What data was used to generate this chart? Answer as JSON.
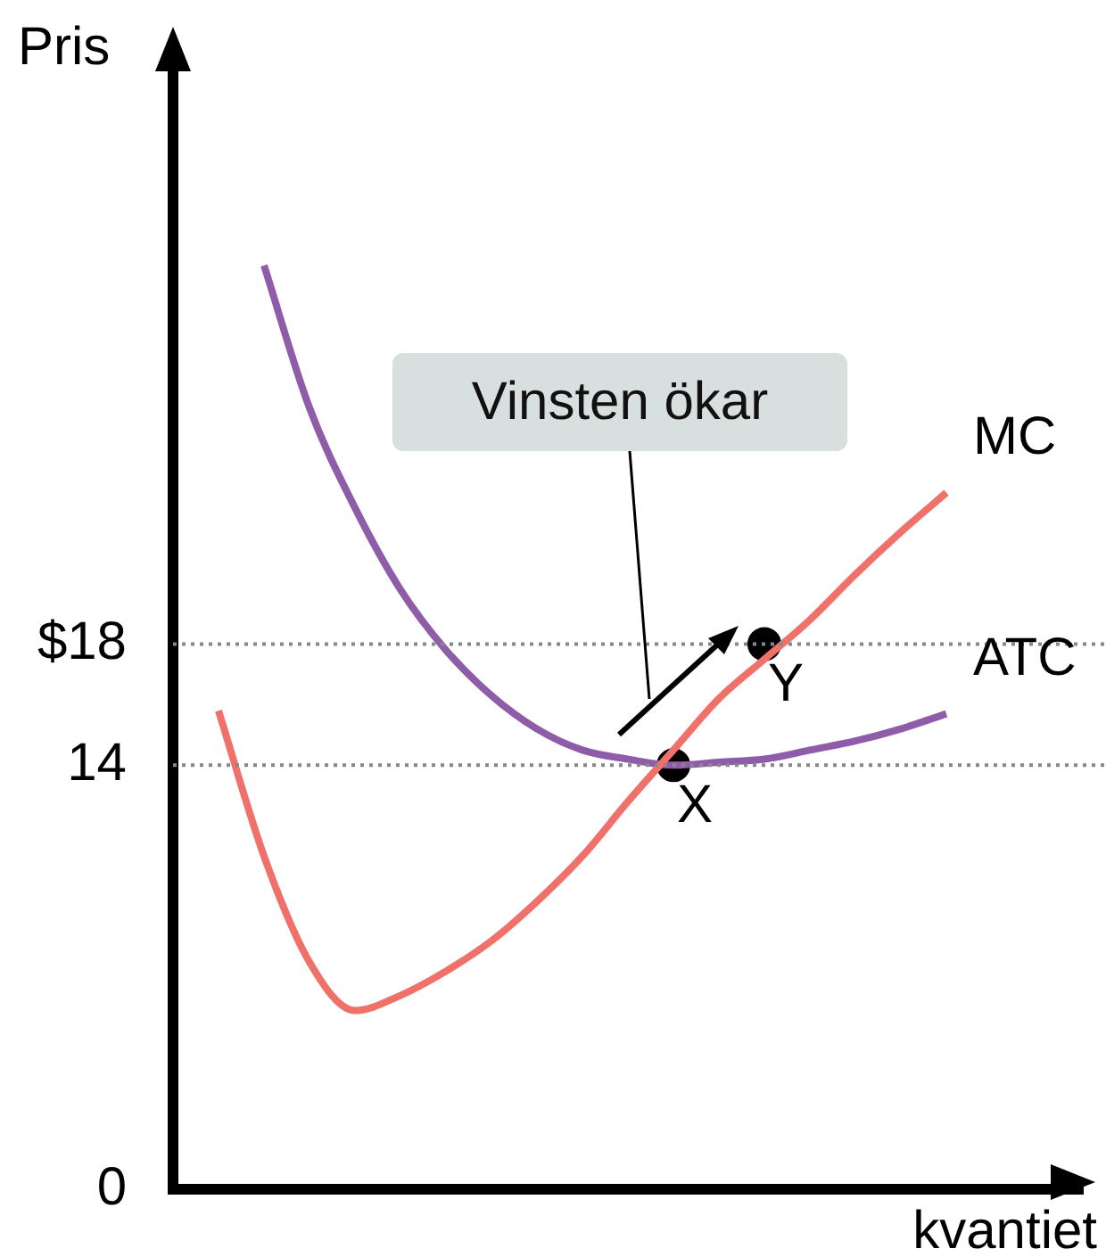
{
  "chart_data": {
    "type": "line",
    "xlabel": "kvantiet",
    "ylabel": "Pris",
    "categories": [
      null,
      null,
      null,
      null,
      null,
      null,
      null,
      null,
      null,
      null,
      null,
      null,
      null,
      null,
      null,
      null,
      null,
      null,
      null,
      null,
      null
    ],
    "ylim": [
      0,
      37.5
    ],
    "yticks": [
      0,
      14,
      {
        "value": 18,
        "label": "$18"
      }
    ],
    "tick_labels": "y",
    "grid": false,
    "legend": false,
    "marker": "none",
    "series": [
      {
        "name": "MC",
        "color": "#f0706a",
        "values": [
          null,
          15.8,
          11,
          7.5,
          5.9,
          6.4,
          7.2,
          8.2,
          9.5,
          11,
          12.8,
          14.5,
          16.2,
          17.5,
          18.8,
          20.3,
          21.7,
          23,
          null,
          null,
          null
        ]
      },
      {
        "name": "ATC",
        "color": "#8e5ca8",
        "values": [
          null,
          null,
          30.5,
          25.8,
          22.5,
          19.8,
          17.8,
          16.3,
          15.2,
          14.5,
          14.2,
          14,
          14.1,
          14.2,
          14.5,
          14.8,
          15.2,
          15.7,
          null,
          null,
          null
        ]
      },
      {
        "type": "scatter",
        "marker": "circle",
        "color": "#000000",
        "values": [
          null,
          null,
          null,
          null,
          null,
          null,
          null,
          null,
          null,
          null,
          null,
          14,
          null,
          18,
          null,
          null,
          null,
          null,
          null,
          null,
          null
        ]
      }
    ],
    "ref_lines": [
      {
        "axis": "y",
        "value": 14,
        "color": "#888888",
        "line_style": "dotted"
      },
      {
        "axis": "y",
        "value": 18,
        "color": "#888888",
        "line_style": "dotted"
      }
    ],
    "annotations": [
      {
        "text": "X",
        "y": 14
      },
      {
        "text": "Y",
        "y": 18
      },
      "Vinsten ökar"
    ]
  }
}
